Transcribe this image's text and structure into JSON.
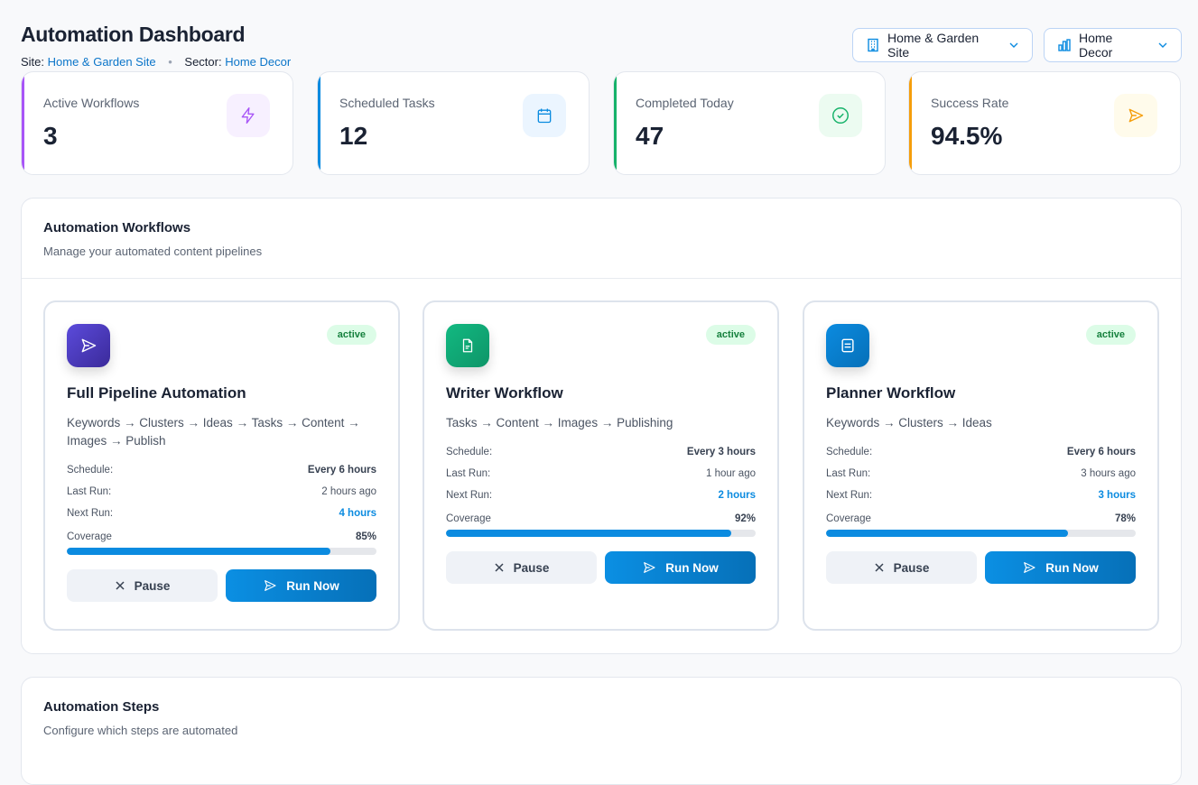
{
  "header": {
    "title": "Automation Dashboard",
    "site_label": "Site:",
    "site_value": "Home & Garden Site",
    "sector_label": "Sector:",
    "sector_value": "Home Decor",
    "separator": "•"
  },
  "selectors": {
    "site": {
      "value": "Home & Garden Site",
      "icon": "building-icon"
    },
    "sector": {
      "value": "Home Decor",
      "icon": "bar-chart-icon"
    }
  },
  "stats": [
    {
      "label": "Active Workflows",
      "value": "3",
      "color": "#a855f7",
      "icon": "zap-icon",
      "icon_bg": "#f7f0ff"
    },
    {
      "label": "Scheduled Tasks",
      "value": "12",
      "color": "#0b8be0",
      "icon": "calendar-icon",
      "icon_bg": "#ebf5ff"
    },
    {
      "label": "Completed Today",
      "value": "47",
      "color": "#16b26a",
      "icon": "check-circle-icon",
      "icon_bg": "#ecfbf1"
    },
    {
      "label": "Success Rate",
      "value": "94.5%",
      "color": "#f59e0b",
      "icon": "send-icon",
      "icon_bg": "#fffbeb"
    }
  ],
  "workflows_panel": {
    "title": "Automation Workflows",
    "subtitle": "Manage your automated content pipelines"
  },
  "workflows": [
    {
      "name": "Full Pipeline Automation",
      "status": "active",
      "description": "Keywords → Clusters → Ideas → Tasks → Content → Images → Publish",
      "icon": "send-icon",
      "gradient": [
        "#5b4bdb",
        "#3b2a9a"
      ],
      "schedule_label": "Schedule:",
      "schedule": "Every 6 hours",
      "last_run_label": "Last Run:",
      "last_run": "2 hours ago",
      "next_run_label": "Next Run:",
      "next_run": "4 hours",
      "coverage_label": "Coverage",
      "coverage": 85,
      "coverage_text": "85%",
      "pause_label": "Pause",
      "run_label": "Run Now"
    },
    {
      "name": "Writer Workflow",
      "status": "active",
      "description": "Tasks → Content → Images → Publishing",
      "icon": "file-text-icon",
      "gradient": [
        "#12b981",
        "#0e9568"
      ],
      "schedule_label": "Schedule:",
      "schedule": "Every 3 hours",
      "last_run_label": "Last Run:",
      "last_run": "1 hour ago",
      "next_run_label": "Next Run:",
      "next_run": "2 hours",
      "coverage_label": "Coverage",
      "coverage": 92,
      "coverage_text": "92%",
      "pause_label": "Pause",
      "run_label": "Run Now"
    },
    {
      "name": "Planner Workflow",
      "status": "active",
      "description": "Keywords → Clusters → Ideas",
      "icon": "list-icon",
      "gradient": [
        "#0b8be0",
        "#0670b8"
      ],
      "schedule_label": "Schedule:",
      "schedule": "Every 6 hours",
      "last_run_label": "Last Run:",
      "last_run": "3 hours ago",
      "next_run_label": "Next Run:",
      "next_run": "3 hours",
      "coverage_label": "Coverage",
      "coverage": 78,
      "coverage_text": "78%",
      "pause_label": "Pause",
      "run_label": "Run Now"
    }
  ],
  "steps_panel": {
    "title": "Automation Steps",
    "subtitle": "Configure which steps are automated"
  }
}
